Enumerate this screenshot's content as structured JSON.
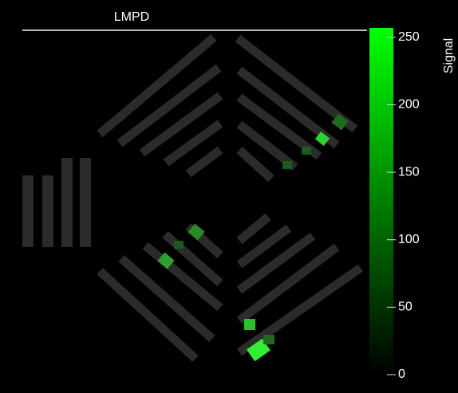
{
  "chart_data": {
    "type": "image",
    "title": "LMPD",
    "colorbar": {
      "label": "Signal",
      "lim": [
        0,
        257
      ],
      "ticks": [
        0,
        50,
        100,
        150,
        200,
        250
      ],
      "colors": [
        "#000000",
        "#00ff00"
      ]
    }
  }
}
